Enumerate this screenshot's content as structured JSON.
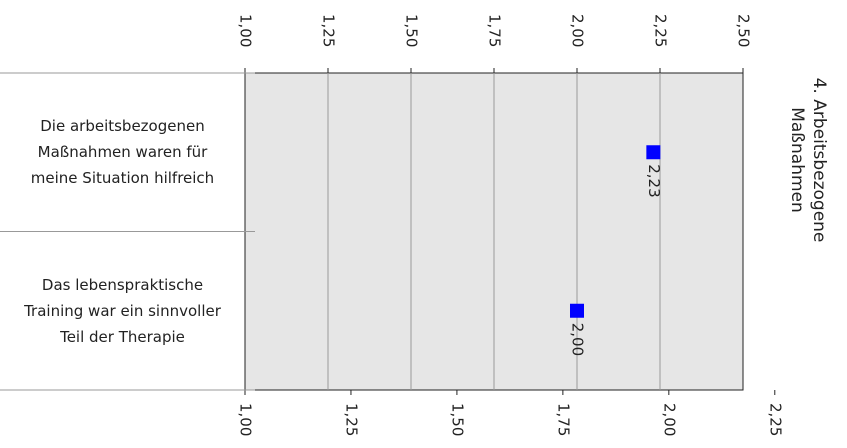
{
  "chart_data": {
    "type": "dot",
    "group_label": "4. Arbeitsbezogene Maßnahmen",
    "categories": [
      "Die arbeitsbezogenen Maßnahmen waren für meine Situation hilfreich",
      "Das lebenspraktische Training war ein sinnvoller Teil der Therapie"
    ],
    "values": [
      2.23,
      2.0
    ],
    "value_labels": [
      "2,23",
      "2,00"
    ],
    "color": "#0000ff",
    "xlim": [
      1,
      2.5
    ],
    "xticks": [
      {
        "value": 1,
        "label": "1,00"
      },
      {
        "value": 1.25,
        "label": "1,25"
      },
      {
        "value": 1.5,
        "label": "1,50"
      },
      {
        "value": 1.75,
        "label": "1,75"
      },
      {
        "value": 2,
        "label": "2,00"
      },
      {
        "value": 2.25,
        "label": "2,25"
      },
      {
        "value": 2.5,
        "label": "2,50"
      }
    ],
    "x2lim": [
      1,
      2.175
    ],
    "x2ticks": [
      {
        "value": 1,
        "label": "1,00"
      },
      {
        "value": 1.25,
        "label": "1,25"
      },
      {
        "value": 1.5,
        "label": "1,50"
      },
      {
        "value": 1.75,
        "label": "1,75"
      },
      {
        "value": 2,
        "label": "2,00"
      },
      {
        "value": 2.25,
        "label": "2,25"
      }
    ],
    "grid": true
  }
}
